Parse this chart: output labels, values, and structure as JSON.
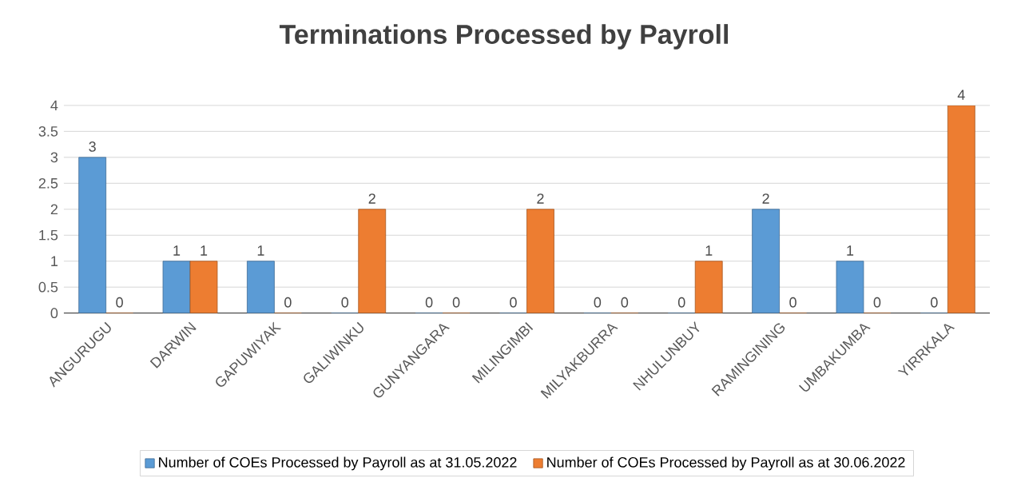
{
  "chart_data": {
    "type": "bar",
    "title": "Terminations Processed by Payroll",
    "categories": [
      "ANGURUGU",
      "DARWIN",
      "GAPUWIYAK",
      "GALIWINKU",
      "GUNYANGARA",
      "MILINGIMBI",
      "MILYAKBURRA",
      "NHULUNBUY",
      "RAMINGINING",
      "UMBAKUMBA",
      "YIRRKALA"
    ],
    "series": [
      {
        "name": "Number of COEs Processed by Payroll as at 31.05.2022",
        "color": "#5b9bd5",
        "values": [
          3,
          1,
          1,
          0,
          0,
          0,
          0,
          0,
          2,
          1,
          0
        ]
      },
      {
        "name": "Number of COEs Processed by Payroll as at 30.06.2022",
        "color": "#ed7d31",
        "values": [
          0,
          1,
          0,
          2,
          0,
          2,
          0,
          1,
          0,
          0,
          4
        ]
      }
    ],
    "ylim": [
      0,
      4
    ],
    "yticks": [
      0,
      0.5,
      1,
      1.5,
      2,
      2.5,
      3,
      3.5,
      4
    ],
    "grid": "y",
    "legend": "bottom",
    "data_labels": true
  }
}
